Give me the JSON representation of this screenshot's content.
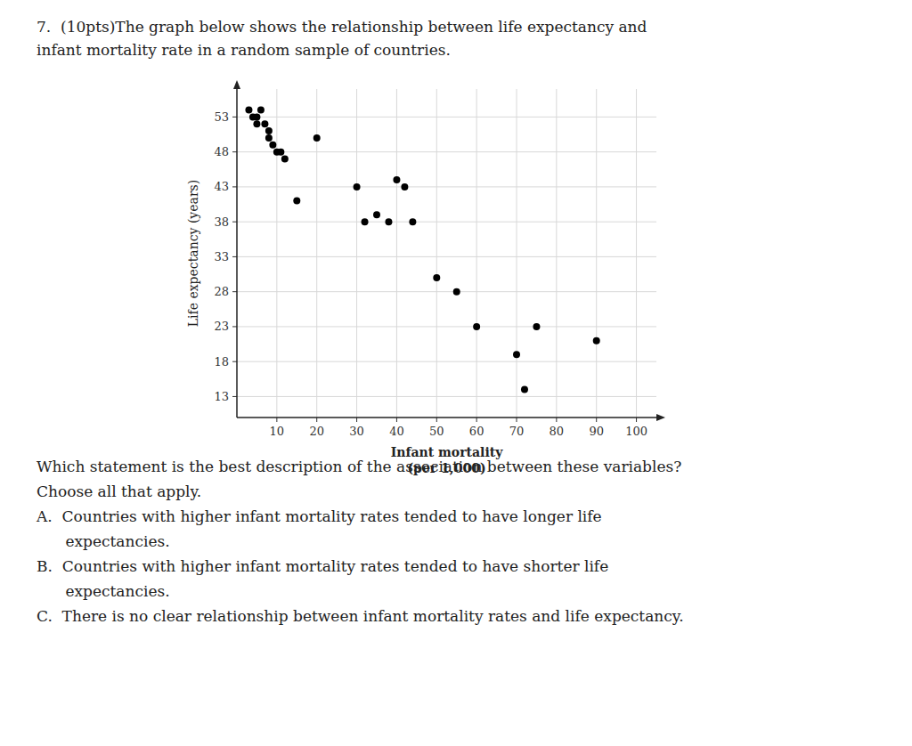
{
  "chart_data": {
    "type": "scatter",
    "title": [
      "7.  (10pts)The graph below shows the relationship between life expectancy and",
      "infant mortality rate in a random sample of countries."
    ],
    "xlabel": [
      "Infant mortality",
      "(per 1,000)"
    ],
    "ylabel": "Life expectancy (years)",
    "x": [
      3,
      4,
      5,
      5,
      6,
      7,
      8,
      8,
      9,
      10,
      11,
      12,
      15,
      20,
      30,
      32,
      35,
      38,
      40,
      42,
      44,
      50,
      55,
      60,
      70,
      72,
      75,
      90
    ],
    "values": [
      54,
      53,
      53,
      52,
      54,
      52,
      51,
      50,
      49,
      48,
      48,
      47,
      41,
      50,
      43,
      38,
      39,
      38,
      44,
      43,
      38,
      30,
      28,
      23,
      19,
      14,
      23,
      21
    ],
    "color": "#000000",
    "xlim": [
      0,
      105
    ],
    "ylim": [
      10,
      57
    ],
    "xticks": [
      10,
      20,
      30,
      40,
      50,
      60,
      70,
      80,
      90,
      100
    ],
    "yticks": [
      13,
      18,
      23,
      28,
      33,
      38,
      43,
      48,
      53
    ],
    "grid": true,
    "annotations": [
      "Which statement is the best description of the association between these variables?",
      "Choose all that apply.",
      "A.  Countries with higher infant mortality rates tended to have longer life",
      "      expectancies.",
      "B.  Countries with higher infant mortality rates tended to have shorter life",
      "      expectancies.",
      "C.  There is no clear relationship between infant mortality rates and life expectancy."
    ]
  }
}
